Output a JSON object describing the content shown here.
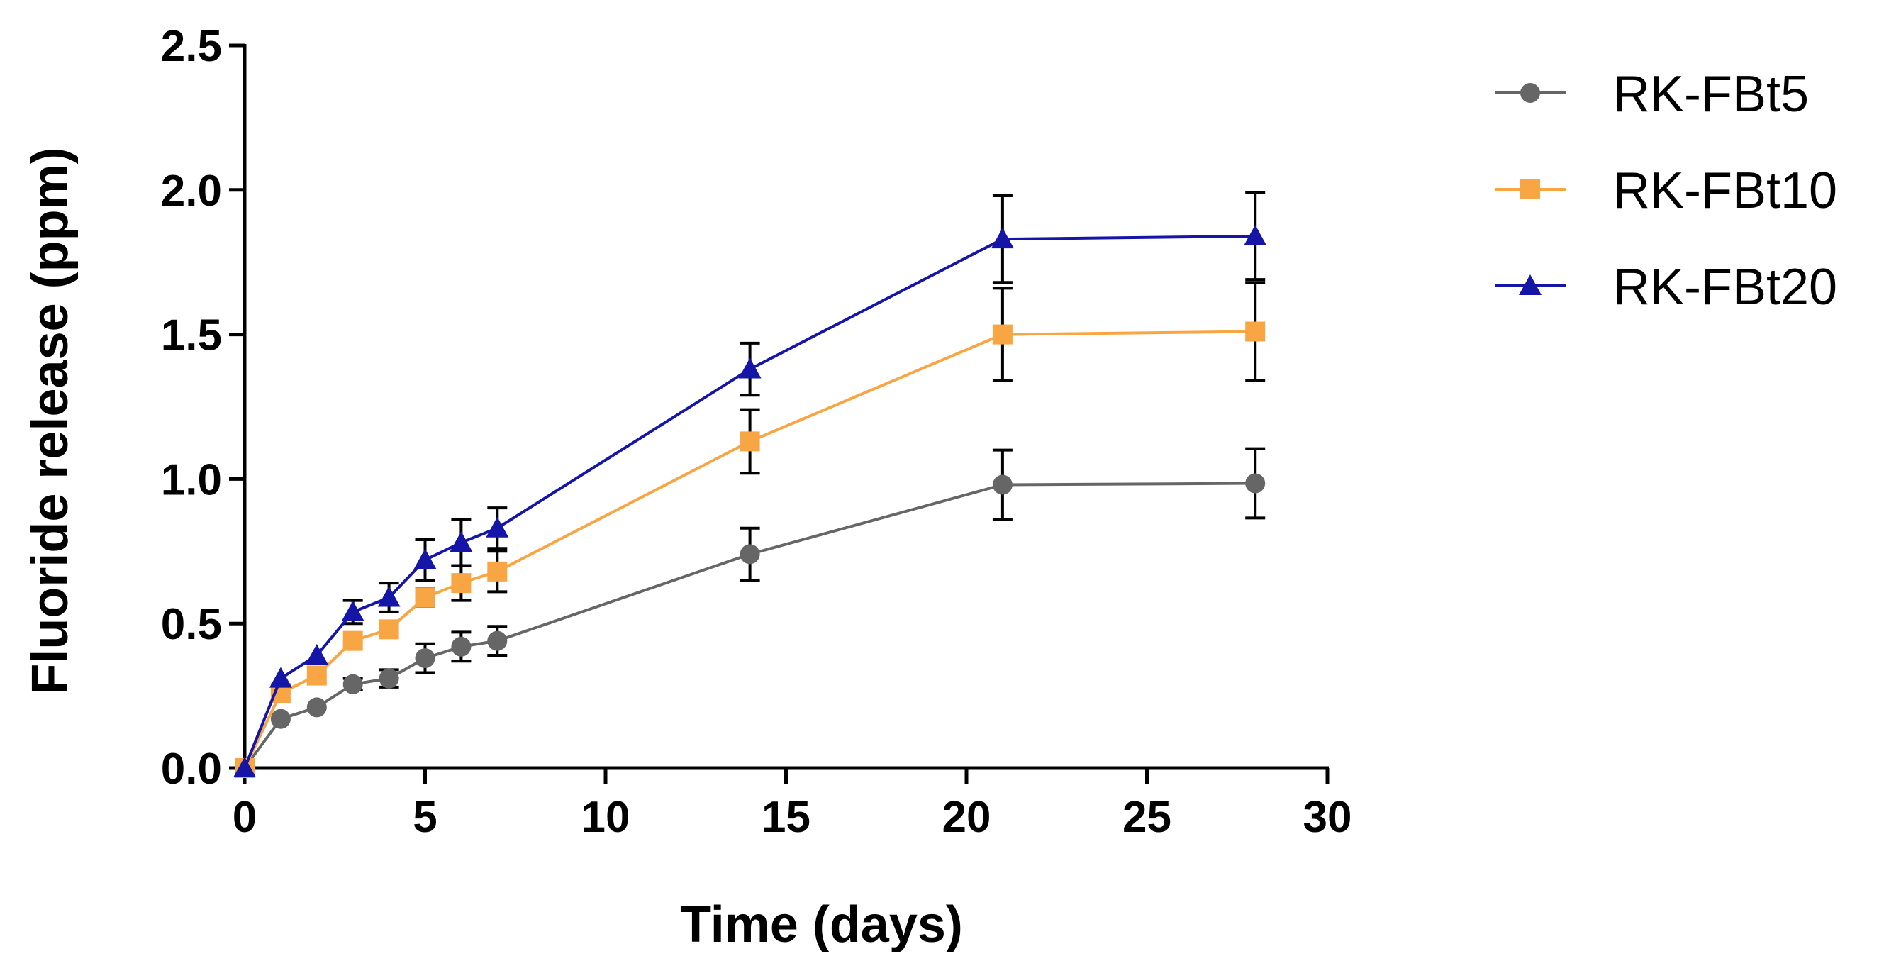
{
  "chart_data": {
    "type": "line",
    "title": "",
    "xlabel": "Time (days)",
    "ylabel": "Fluoride release (ppm)",
    "xlim": [
      0,
      30
    ],
    "ylim": [
      0,
      2.5
    ],
    "xticks": [
      0,
      5,
      10,
      15,
      20,
      25,
      30
    ],
    "xtick_labels": [
      "0",
      "5",
      "10",
      "15",
      "20",
      "25",
      "30"
    ],
    "yticks": [
      0,
      0.5,
      1.0,
      1.5,
      2.0,
      2.5
    ],
    "ytick_labels": [
      "0.0",
      "0.5",
      "1.0",
      "1.5",
      "2.0",
      "2.5"
    ],
    "grid": false,
    "legend_position": "top-right",
    "x": [
      0,
      1,
      2,
      3,
      4,
      5,
      6,
      7,
      14,
      21,
      28
    ],
    "series": [
      {
        "name": "RK-FBt5",
        "color": "#666666",
        "marker": "circle",
        "values": [
          0,
          0.17,
          0.21,
          0.29,
          0.31,
          0.38,
          0.42,
          0.44,
          0.74,
          0.98,
          0.985
        ],
        "errors": [
          0,
          0,
          0,
          0.02,
          0.03,
          0.05,
          0.05,
          0.05,
          0.09,
          0.12,
          0.12
        ]
      },
      {
        "name": "RK-FBt10",
        "color": "#F8A544",
        "marker": "square",
        "values": [
          0,
          0.26,
          0.32,
          0.44,
          0.48,
          0.59,
          0.64,
          0.68,
          1.13,
          1.5,
          1.51
        ],
        "errors": [
          0,
          0,
          0,
          0,
          0,
          0.03,
          0.06,
          0.07,
          0.11,
          0.16,
          0.17
        ]
      },
      {
        "name": "RK-FBt20",
        "color": "#1515A8",
        "marker": "triangle",
        "values": [
          0,
          0.31,
          0.39,
          0.54,
          0.59,
          0.72,
          0.78,
          0.83,
          1.38,
          1.83,
          1.84
        ],
        "errors": [
          0,
          0,
          0,
          0.04,
          0.05,
          0.07,
          0.08,
          0.07,
          0.09,
          0.15,
          0.15
        ]
      }
    ]
  }
}
